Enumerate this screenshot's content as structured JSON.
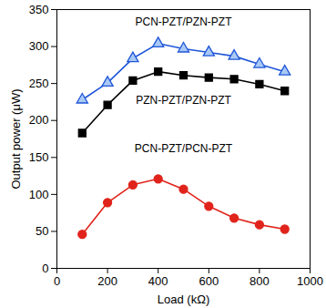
{
  "chart_data": {
    "type": "line",
    "x_label": "Load (kΩ)",
    "y_label": "Output power (μW)",
    "x": [
      100,
      200,
      300,
      400,
      500,
      600,
      700,
      800,
      900
    ],
    "xlim": [
      0,
      1000
    ],
    "xticks": [
      0,
      200,
      400,
      600,
      800,
      1000
    ],
    "ylim": [
      0,
      350
    ],
    "yticks": [
      0,
      50,
      100,
      150,
      200,
      250,
      300,
      350
    ],
    "grid": false,
    "series": [
      {
        "name": "PCN-PZT/PZN-PZT",
        "color": "#1f56d8",
        "marker": "triangle",
        "values": [
          228,
          251,
          284,
          304,
          297,
          292,
          287,
          276,
          266
        ]
      },
      {
        "name": "PZN-PZT/PZN-PZT",
        "color": "#000000",
        "marker": "square",
        "values": [
          183,
          221,
          254,
          266,
          261,
          258,
          256,
          249,
          240
        ]
      },
      {
        "name": "PCN-PZT/PCN-PZT",
        "color": "#e0241b",
        "marker": "circle",
        "values": [
          46,
          89,
          113,
          121,
          107,
          84,
          68,
          59,
          53
        ]
      }
    ]
  }
}
